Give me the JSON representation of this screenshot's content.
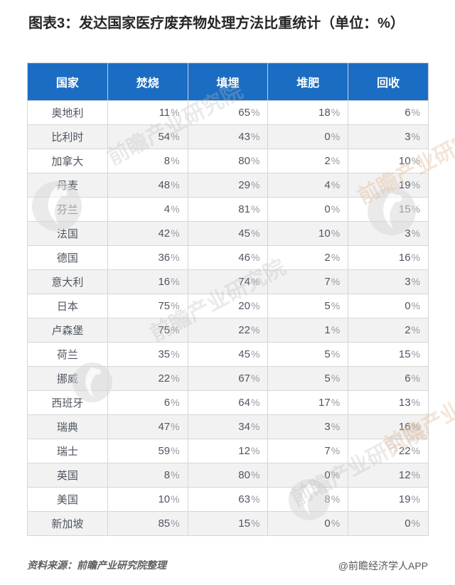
{
  "title": "图表3：发达国家医疗废弃物处理方法比重统计（单位：%）",
  "colors": {
    "header_bg": "#1b6dc3",
    "header_text": "#ffffff",
    "row_alt_bg": "#f2f2f2",
    "body_text": "#4f5560",
    "border": "#d6d6d6"
  },
  "chart_data": {
    "type": "table",
    "title": "图表3：发达国家医疗废弃物处理方法比重统计（单位：%）",
    "unit": "%",
    "columns": [
      "国家",
      "焚烧",
      "填埋",
      "堆肥",
      "回收"
    ],
    "rows": [
      [
        "奥地利",
        "11%",
        "65%",
        "18%",
        "6%"
      ],
      [
        "比利时",
        "54%",
        "43%",
        "0%",
        "3%"
      ],
      [
        "加拿大",
        "8%",
        "80%",
        "2%",
        "10%"
      ],
      [
        "丹麦",
        "48%",
        "29%",
        "4%",
        "19%"
      ],
      [
        "芬兰",
        "4%",
        "81%",
        "0%",
        "15%"
      ],
      [
        "法国",
        "42%",
        "45%",
        "10%",
        "3%"
      ],
      [
        "德国",
        "36%",
        "46%",
        "2%",
        "16%"
      ],
      [
        "意大利",
        "16%",
        "74%",
        "7%",
        "3%"
      ],
      [
        "日本",
        "75%",
        "20%",
        "5%",
        "0%"
      ],
      [
        "卢森堡",
        "75%",
        "22%",
        "1%",
        "2%"
      ],
      [
        "荷兰",
        "35%",
        "45%",
        "5%",
        "15%"
      ],
      [
        "挪威",
        "22%",
        "67%",
        "5%",
        "6%"
      ],
      [
        "西班牙",
        "6%",
        "64%",
        "17%",
        "13%"
      ],
      [
        "瑞典",
        "47%",
        "34%",
        "3%",
        "16%"
      ],
      [
        "瑞士",
        "59%",
        "12%",
        "7%",
        "22%"
      ],
      [
        "英国",
        "8%",
        "80%",
        "0%",
        "12%"
      ],
      [
        "美国",
        "10%",
        "63%",
        "8%",
        "19%"
      ],
      [
        "新加坡",
        "85%",
        "15%",
        "0%",
        "0%"
      ]
    ]
  },
  "footer": {
    "source": "资料来源：前瞻产业研究院整理",
    "credit": "@前瞻经济学人APP"
  },
  "watermark": {
    "text": "前瞻产业研究院"
  }
}
